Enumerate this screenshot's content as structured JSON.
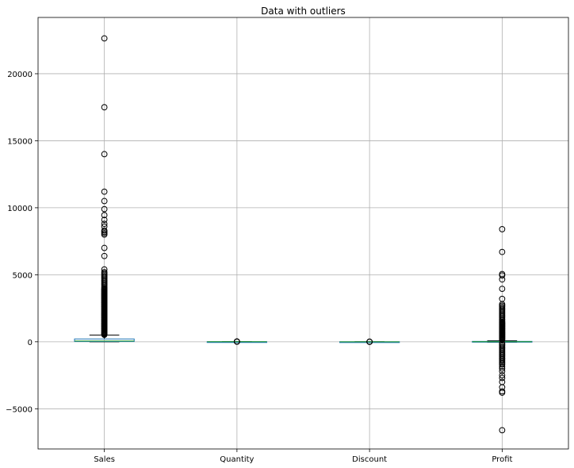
{
  "chart_data": {
    "type": "boxplot",
    "title": "Data with outliers",
    "xlabel": "",
    "ylabel": "",
    "ylim": [
      -8000,
      24200
    ],
    "yticks": [
      -5000,
      0,
      5000,
      10000,
      15000,
      20000
    ],
    "ytick_labels": [
      "−5000",
      "0",
      "5000",
      "10000",
      "15000",
      "20000"
    ],
    "grid": true,
    "colors": {
      "box": "#1f77b4",
      "median": "#2ca02c",
      "whisker": "#000000",
      "flier": "#000000",
      "grid": "#b0b0b0"
    },
    "categories": [
      "Sales",
      "Quantity",
      "Discount",
      "Profit"
    ],
    "series": [
      {
        "name": "Sales",
        "whislo": 0.4,
        "q1": 17,
        "med": 54,
        "q3": 210,
        "whishi": 498,
        "fliers": [
          520,
          560,
          600,
          650,
          700,
          750,
          800,
          850,
          900,
          950,
          1000,
          1050,
          1100,
          1150,
          1200,
          1250,
          1300,
          1350,
          1400,
          1450,
          1500,
          1550,
          1600,
          1650,
          1700,
          1750,
          1800,
          1850,
          1900,
          1950,
          2000,
          2050,
          2100,
          2150,
          2200,
          2250,
          2300,
          2350,
          2400,
          2450,
          2500,
          2550,
          2600,
          2650,
          2700,
          2750,
          2800,
          2850,
          2900,
          2950,
          3000,
          3050,
          3100,
          3150,
          3200,
          3250,
          3300,
          3350,
          3400,
          3450,
          3500,
          3550,
          3600,
          3650,
          3700,
          3750,
          3800,
          3850,
          3900,
          3950,
          4000,
          4100,
          4200,
          4300,
          4400,
          4500,
          4600,
          4700,
          4800,
          4900,
          5000,
          5100,
          5200,
          5400,
          6400,
          7000,
          8000,
          8100,
          8200,
          8300,
          8600,
          8800,
          9100,
          9450,
          9900,
          10500,
          11200,
          14000,
          17500,
          22640
        ]
      },
      {
        "name": "Quantity",
        "whislo": 1,
        "q1": 2,
        "med": 3,
        "q3": 5,
        "whishi": 9,
        "fliers": [
          10,
          11,
          12,
          13,
          14
        ]
      },
      {
        "name": "Discount",
        "whislo": 0,
        "q1": 0,
        "med": 0.2,
        "q3": 0.2,
        "whishi": 0.5,
        "fliers": [
          0.6,
          0.7,
          0.8
        ]
      },
      {
        "name": "Profit",
        "whislo": -39,
        "q1": 2,
        "med": 9,
        "q3": 29,
        "whishi": 70,
        "fliers": [
          -6600,
          -3800,
          -3700,
          -3400,
          -3000,
          -2700,
          -2500,
          -2200,
          -2000,
          -1850,
          -1700,
          -1600,
          -1500,
          -1400,
          -1300,
          -1200,
          -1100,
          -1000,
          -900,
          -800,
          -700,
          -600,
          -500,
          -400,
          -300,
          -200,
          -100,
          150,
          200,
          250,
          300,
          350,
          400,
          450,
          500,
          550,
          600,
          650,
          700,
          750,
          800,
          850,
          900,
          950,
          1000,
          1050,
          1100,
          1150,
          1200,
          1250,
          1300,
          1350,
          1400,
          1450,
          1500,
          1600,
          1700,
          1800,
          1900,
          2000,
          2100,
          2200,
          2300,
          2400,
          2500,
          2600,
          2700,
          2800,
          3200,
          3950,
          4650,
          4950,
          5050,
          6700,
          8400
        ]
      }
    ]
  }
}
